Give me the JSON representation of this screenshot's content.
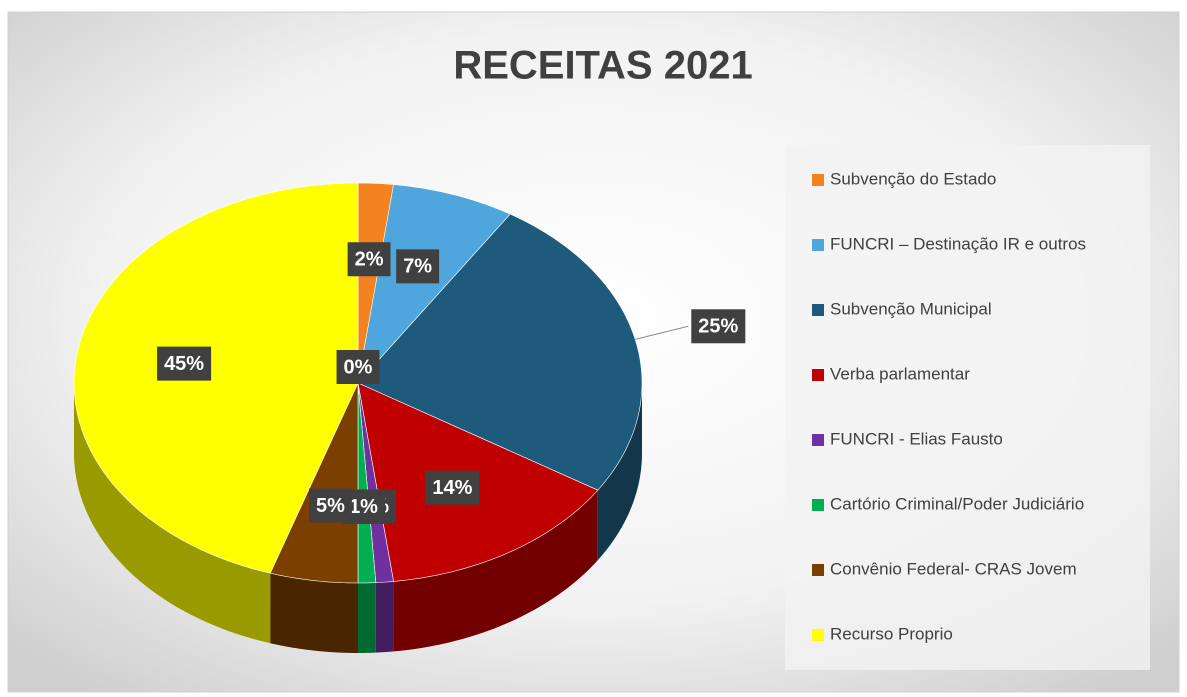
{
  "chart_data": {
    "type": "pie",
    "title": "RECEITAS 2021",
    "categories": [
      "Subvenção do Estado",
      "FUNCRI –  Destinação IR e outros",
      "Subvenção Municipal",
      "Verba parlamentar",
      "FUNCRI - Elias Fausto",
      "Cartório Criminal/Poder Judiciário",
      "Convênio Federal- CRAS Jovem",
      "Recurso Proprio",
      null
    ],
    "values": [
      2,
      7,
      25,
      14,
      1,
      1,
      5,
      45,
      0
    ],
    "value_labels": [
      "2%",
      "7%",
      "25%",
      "14%",
      "1%",
      "1%",
      "5%",
      "45%",
      "0%"
    ],
    "colors": [
      "#f4821f",
      "#4ea6dc",
      "#1e5a7c",
      "#c00000",
      "#7030a0",
      "#00b050",
      "#7b3f00",
      "#ffff00"
    ],
    "legend": "right"
  }
}
